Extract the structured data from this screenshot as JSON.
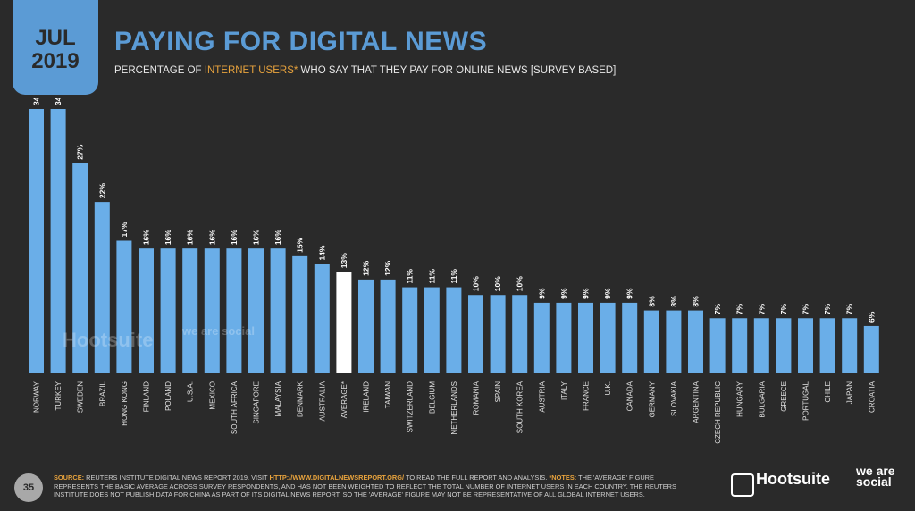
{
  "header": {
    "month": "JUL",
    "year": "2019",
    "title": "PAYING FOR DIGITAL NEWS",
    "subtitle_pre": "PERCENTAGE OF ",
    "subtitle_highlight": "INTERNET USERS*",
    "subtitle_post": " WHO SAY THAT THEY PAY FOR ONLINE NEWS [SURVEY BASED]"
  },
  "watermark": {
    "brand": "Hootsuite",
    "partner": "we are social"
  },
  "footer": {
    "page_number": "35",
    "source_label": "SOURCE:",
    "source_text": " REUTERS INSTITUTE DIGITAL NEWS REPORT 2019. VISIT ",
    "source_url": "HTTP://WWW.DIGITALNEWSREPORT.ORG/",
    "source_tail": " TO READ THE FULL REPORT AND ANALYSIS. ",
    "notes_label": "*NOTES:",
    "notes_text": " THE 'AVERAGE' FIGURE REPRESENTS THE BASIC AVERAGE ACROSS SURVEY RESPONDENTS, AND HAS NOT BEEN WEIGHTED TO REFLECT THE TOTAL NUMBER OF INTERNET USERS IN EACH COUNTRY. THE REUTERS INSTITUTE DOES NOT PUBLISH DATA FOR CHINA AS PART OF ITS DIGITAL NEWS REPORT, SO THE 'AVERAGE' FIGURE MAY NOT BE REPRESENTATIVE OF ALL GLOBAL INTERNET USERS."
  },
  "logos": {
    "hootsuite": "Hootsuite",
    "we_are_social": "we are social"
  },
  "colors": {
    "bar": "#6aaee8",
    "highlight_bar": "#ffffff",
    "accent": "#5b9bd5",
    "orange": "#e8a33d",
    "background": "#2a2a2a"
  },
  "chart_data": {
    "type": "bar",
    "categories": [
      "NORWAY",
      "TURKEY",
      "SWEDEN",
      "BRAZIL",
      "HONG KONG",
      "FINLAND",
      "POLAND",
      "U.S.A.",
      "MEXICO",
      "SOUTH AFRICA",
      "SINGAPORE",
      "MALAYSIA",
      "DENMARK",
      "AUSTRALIA",
      "AVERAGE*",
      "IRELAND",
      "TAIWAN",
      "SWITZERLAND",
      "BELGIUM",
      "NETHERLANDS",
      "ROMANIA",
      "SPAIN",
      "SOUTH KOREA",
      "AUSTRIA",
      "ITALY",
      "FRANCE",
      "U.K.",
      "CANADA",
      "GERMANY",
      "SLOVAKIA",
      "ARGENTINA",
      "CZECH REPUBLIC",
      "HUNGARY",
      "BULGARIA",
      "GREECE",
      "PORTUGAL",
      "CHILE",
      "JAPAN",
      "CROATIA"
    ],
    "values": [
      34,
      34,
      27,
      22,
      17,
      16,
      16,
      16,
      16,
      16,
      16,
      16,
      15,
      14,
      13,
      12,
      12,
      11,
      11,
      11,
      10,
      10,
      10,
      9,
      9,
      9,
      9,
      9,
      8,
      8,
      8,
      7,
      7,
      7,
      7,
      7,
      7,
      7,
      6
    ],
    "value_labels": [
      "34%",
      "34%",
      "27%",
      "22%",
      "17%",
      "16%",
      "16%",
      "16%",
      "16%",
      "16%",
      "16%",
      "16%",
      "15%",
      "14%",
      "13%",
      "12%",
      "12%",
      "11%",
      "11%",
      "11%",
      "10%",
      "10%",
      "10%",
      "9%",
      "9%",
      "9%",
      "9%",
      "9%",
      "8%",
      "8%",
      "8%",
      "7%",
      "7%",
      "7%",
      "7%",
      "7%",
      "7%",
      "7%",
      "6%"
    ],
    "highlight_category": "AVERAGE*",
    "ylim": [
      0,
      34
    ]
  }
}
